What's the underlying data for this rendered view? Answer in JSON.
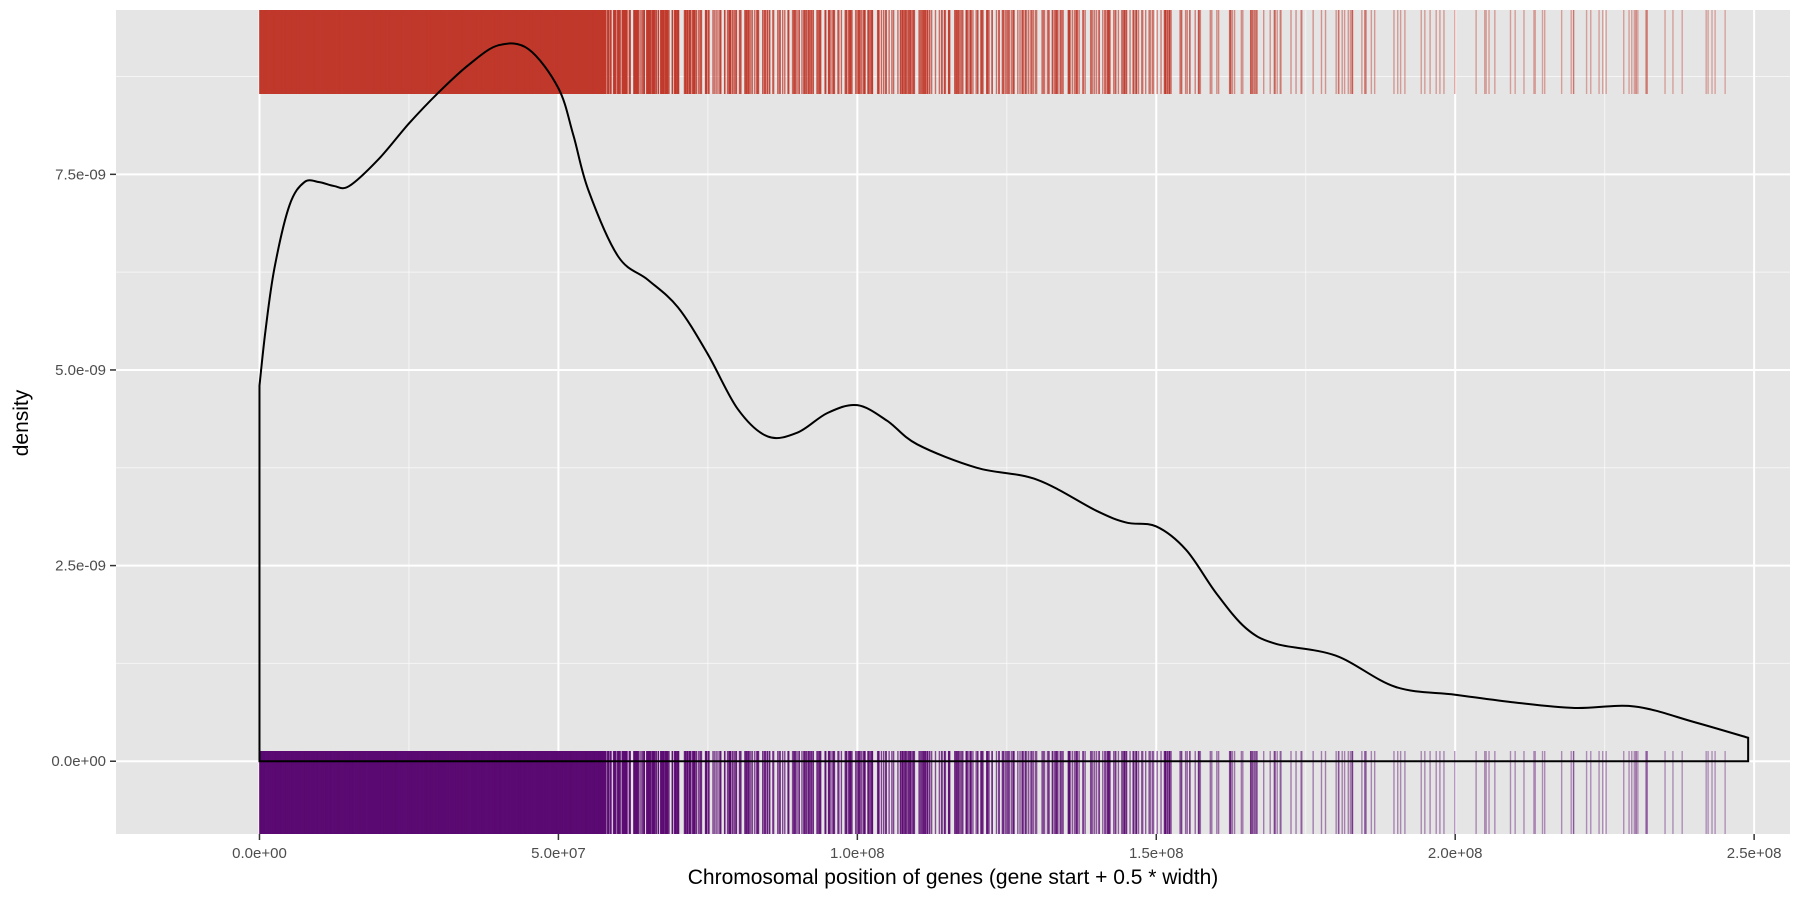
{
  "chart_data": {
    "type": "area",
    "xlabel": "Chromosomal position of genes (gene start + 0.5 * width)",
    "ylabel": "density",
    "xlim": [
      -24000000.0,
      256000000.0
    ],
    "ylim": [
      -9.3e-10,
      9.6e-09
    ],
    "x_ticks": [
      {
        "value": 0,
        "label": "0.0e+00"
      },
      {
        "value": 50000000.0,
        "label": "5.0e+07"
      },
      {
        "value": 100000000.0,
        "label": "1.0e+08"
      },
      {
        "value": 150000000.0,
        "label": "1.5e+08"
      },
      {
        "value": 200000000.0,
        "label": "2.0e+08"
      },
      {
        "value": 250000000.0,
        "label": "2.5e+08"
      }
    ],
    "y_ticks": [
      {
        "value": 0,
        "label": "0.0e+00"
      },
      {
        "value": 2.5e-09,
        "label": "2.5e-09"
      },
      {
        "value": 5e-09,
        "label": "5.0e-09"
      },
      {
        "value": 7.5e-09,
        "label": "7.5e-09"
      }
    ],
    "grid": true,
    "density": {
      "x": [
        0,
        1000000.0,
        2500000.0,
        5000000.0,
        7500000.0,
        10000000.0,
        12500000.0,
        15000000.0,
        20000000.0,
        25000000.0,
        30000000.0,
        35000000.0,
        40000000.0,
        45000000.0,
        50000000.0,
        52500000.0,
        55000000.0,
        60000000.0,
        65000000.0,
        70000000.0,
        75000000.0,
        80000000.0,
        85000000.0,
        90000000.0,
        95000000.0,
        100000000.0,
        105000000.0,
        110000000.0,
        120000000.0,
        130000000.0,
        140000000.0,
        145000000.0,
        150000000.0,
        155000000.0,
        160000000.0,
        165000000.0,
        170000000.0,
        180000000.0,
        190000000.0,
        200000000.0,
        210000000.0,
        220000000.0,
        230000000.0,
        240000000.0,
        249000000.0
      ],
      "y": [
        4.8e-09,
        5.5e-09,
        6.3e-09,
        7.1e-09,
        7.4e-09,
        7.4e-09,
        7.35e-09,
        7.35e-09,
        7.7e-09,
        8.15e-09,
        8.55e-09,
        8.9e-09,
        9.15e-09,
        9.1e-09,
        8.6e-09,
        8e-09,
        7.3e-09,
        6.45e-09,
        6.15e-09,
        5.8e-09,
        5.2e-09,
        4.5e-09,
        4.15e-09,
        4.2e-09,
        4.45e-09,
        4.55e-09,
        4.35e-09,
        4.05e-09,
        3.75e-09,
        3.6e-09,
        3.2e-09,
        3.05e-09,
        3e-09,
        2.7e-09,
        2.15e-09,
        1.7e-09,
        1.5e-09,
        1.35e-09,
        9.5e-10,
        8.5e-10,
        7.5e-10,
        6.8e-10,
        7e-10,
        5e-10,
        3e-10
      ]
    },
    "rugs": [
      {
        "position": "top",
        "color": "#C0392B"
      },
      {
        "position": "bottom",
        "color": "#5B0A72"
      }
    ],
    "colors": {
      "panel": "#E5E5E5",
      "grid_major": "#FFFFFF",
      "curve": "#000000"
    }
  }
}
